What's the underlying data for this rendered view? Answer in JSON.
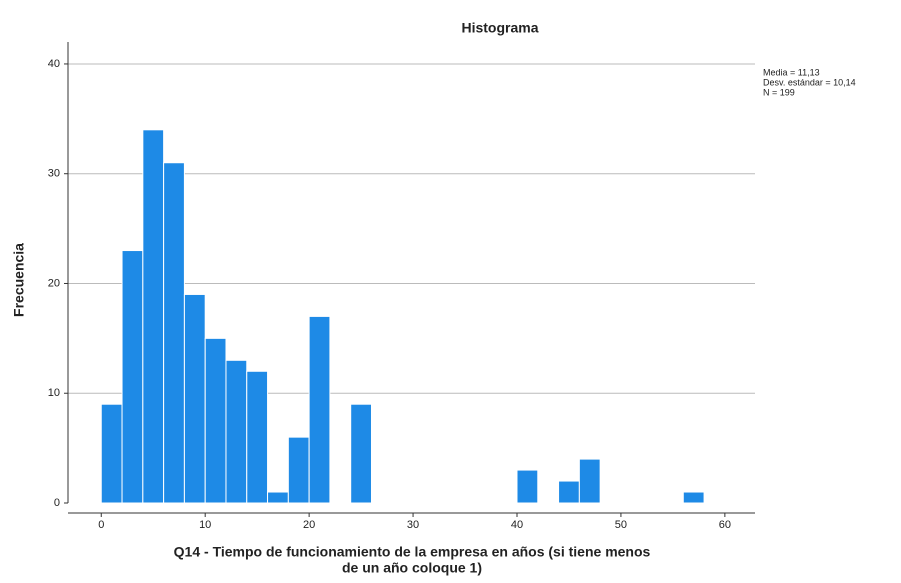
{
  "chart_data": {
    "type": "histogram",
    "title": "Histograma",
    "xlabel": [
      "Q14 - Tiempo de funcionamiento de la empresa en años (si tiene menos",
      "de un año coloque 1)"
    ],
    "ylabel": "Frecuencia",
    "annotations": [
      "Media = 11,13",
      "Desv. estándar = 10,14",
      "N = 199"
    ],
    "bins": [
      0,
      2,
      4,
      6,
      8,
      10,
      12,
      14,
      16,
      18,
      20,
      22,
      24,
      26,
      28,
      30,
      32,
      34,
      36,
      38,
      40,
      42,
      44,
      46,
      48,
      50,
      52,
      54,
      56,
      58
    ],
    "values": [
      9,
      23,
      34,
      31,
      19,
      15,
      13,
      12,
      1,
      6,
      17,
      0,
      9,
      0,
      0,
      0,
      0,
      0,
      0,
      0,
      3,
      0,
      2,
      4,
      0,
      0,
      0,
      0,
      1
    ],
    "color": "#1e8ae6",
    "xlim": [
      -3.2,
      62.9
    ],
    "ylim": [
      0,
      42
    ],
    "xticks": [
      0,
      10,
      20,
      30,
      40,
      50,
      60
    ],
    "yticks": [
      0,
      10,
      20,
      30,
      40
    ],
    "grid": true
  }
}
